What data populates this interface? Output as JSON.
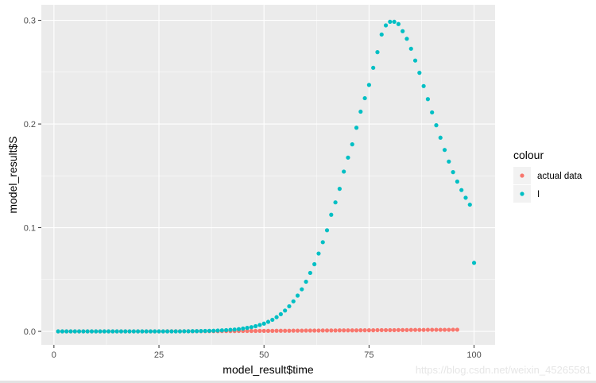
{
  "chart_data": {
    "type": "scatter",
    "xlabel": "model_result$time",
    "ylabel": "model_result$S",
    "xlim": [
      -3,
      105
    ],
    "ylim": [
      -0.013,
      0.315
    ],
    "x_ticks": [
      0,
      25,
      50,
      75,
      100
    ],
    "x_tick_labels": [
      "0",
      "25",
      "50",
      "75",
      "100"
    ],
    "y_ticks": [
      0.0,
      0.1,
      0.2,
      0.3
    ],
    "y_tick_labels": [
      "0.0",
      "0.1",
      "0.2",
      "0.3"
    ],
    "grid": true,
    "legend": {
      "title": "colour",
      "position": "right"
    },
    "series": [
      {
        "name": "actual data",
        "color": "#F8766D",
        "x": [
          1,
          2,
          3,
          4,
          5,
          6,
          7,
          8,
          9,
          10,
          11,
          12,
          13,
          14,
          15,
          16,
          17,
          18,
          19,
          20,
          21,
          22,
          23,
          24,
          25,
          26,
          27,
          28,
          29,
          30,
          31,
          32,
          33,
          34,
          35,
          36,
          37,
          38,
          39,
          40,
          41,
          42,
          43,
          44,
          45,
          46,
          47,
          48,
          49,
          50,
          51,
          52,
          53,
          54,
          55,
          56,
          57,
          58,
          59,
          60,
          61,
          62,
          63,
          64,
          65,
          66,
          67,
          68,
          69,
          70,
          71,
          72,
          73,
          74,
          75,
          76,
          77,
          78,
          79,
          80,
          81,
          82,
          83,
          84,
          85,
          86,
          87,
          88,
          89,
          90,
          91,
          92,
          93,
          94,
          95,
          96
        ],
        "y": [
          0,
          0,
          0,
          0,
          0,
          0,
          0,
          0,
          0,
          0,
          0,
          0,
          0,
          0,
          0,
          0,
          0,
          0,
          0,
          0,
          0,
          0,
          0,
          0,
          0,
          0,
          0.0001,
          0.0001,
          0.0001,
          0.0001,
          0.0001,
          0.0001,
          0.0001,
          0.0002,
          0.0002,
          0.0002,
          0.0002,
          0.0002,
          0.0002,
          0.0003,
          0.0003,
          0.0003,
          0.0003,
          0.0004,
          0.0004,
          0.0004,
          0.0004,
          0.0004,
          0.0005,
          0.0005,
          0.0005,
          0.0005,
          0.0006,
          0.0006,
          0.0006,
          0.0006,
          0.0007,
          0.0007,
          0.0007,
          0.0008,
          0.0008,
          0.0008,
          0.0008,
          0.0009,
          0.0009,
          0.0009,
          0.0009,
          0.001,
          0.001,
          0.001,
          0.001,
          0.001,
          0.0011,
          0.0011,
          0.0011,
          0.0011,
          0.0012,
          0.0012,
          0.0012,
          0.0012,
          0.0012,
          0.0013,
          0.0013,
          0.0013,
          0.0014,
          0.0014,
          0.0014,
          0.0014,
          0.0015,
          0.0015,
          0.0015,
          0.0015,
          0.0015,
          0.0015,
          0.0016,
          0.0016
        ]
      },
      {
        "name": "I",
        "color": "#00BFC4",
        "x": [
          1,
          2,
          3,
          4,
          5,
          6,
          7,
          8,
          9,
          10,
          11,
          12,
          13,
          14,
          15,
          16,
          17,
          18,
          19,
          20,
          21,
          22,
          23,
          24,
          25,
          26,
          27,
          28,
          29,
          30,
          31,
          32,
          33,
          34,
          35,
          36,
          37,
          38,
          39,
          40,
          41,
          42,
          43,
          44,
          45,
          46,
          47,
          48,
          49,
          50,
          51,
          52,
          53,
          54,
          55,
          56,
          57,
          58,
          59,
          60,
          61,
          62,
          63,
          64,
          65,
          66,
          67,
          68,
          69,
          70,
          71,
          72,
          73,
          74,
          75,
          76,
          77,
          78,
          79,
          80,
          81,
          82,
          83,
          84,
          85,
          86,
          87,
          88,
          89,
          90,
          91,
          92,
          93,
          94,
          95,
          96,
          97,
          98,
          99,
          100
        ],
        "y": [
          0,
          0,
          0,
          0,
          0,
          0,
          0,
          0,
          0,
          0,
          0,
          0,
          0,
          0,
          0,
          0,
          0,
          0,
          0,
          0,
          0,
          0,
          0,
          0,
          0,
          0,
          0,
          0,
          0,
          0,
          0.0001,
          0.0001,
          0.0002,
          0.0002,
          0.0003,
          0.0004,
          0.0005,
          0.0006,
          0.0008,
          0.001,
          0.0012,
          0.0015,
          0.0018,
          0.0022,
          0.0027,
          0.0034,
          0.0041,
          0.005,
          0.0062,
          0.0075,
          0.0092,
          0.0112,
          0.0137,
          0.0166,
          0.0201,
          0.0242,
          0.029,
          0.0345,
          0.0406,
          0.0479,
          0.0564,
          0.0648,
          0.0751,
          0.086,
          0.0975,
          0.1125,
          0.1244,
          0.1375,
          0.1541,
          0.1676,
          0.1804,
          0.1964,
          0.2119,
          0.2249,
          0.2377,
          0.2542,
          0.2693,
          0.2863,
          0.2951,
          0.2986,
          0.2986,
          0.2964,
          0.2895,
          0.2822,
          0.2726,
          0.2612,
          0.2494,
          0.2366,
          0.224,
          0.2112,
          0.1988,
          0.1868,
          0.175,
          0.1638,
          0.1536,
          0.1445,
          0.1363,
          0.1289,
          0.1222,
          0.0661
        ]
      }
    ]
  },
  "watermark": "https://blog.csdn.net/weixin_45265581"
}
